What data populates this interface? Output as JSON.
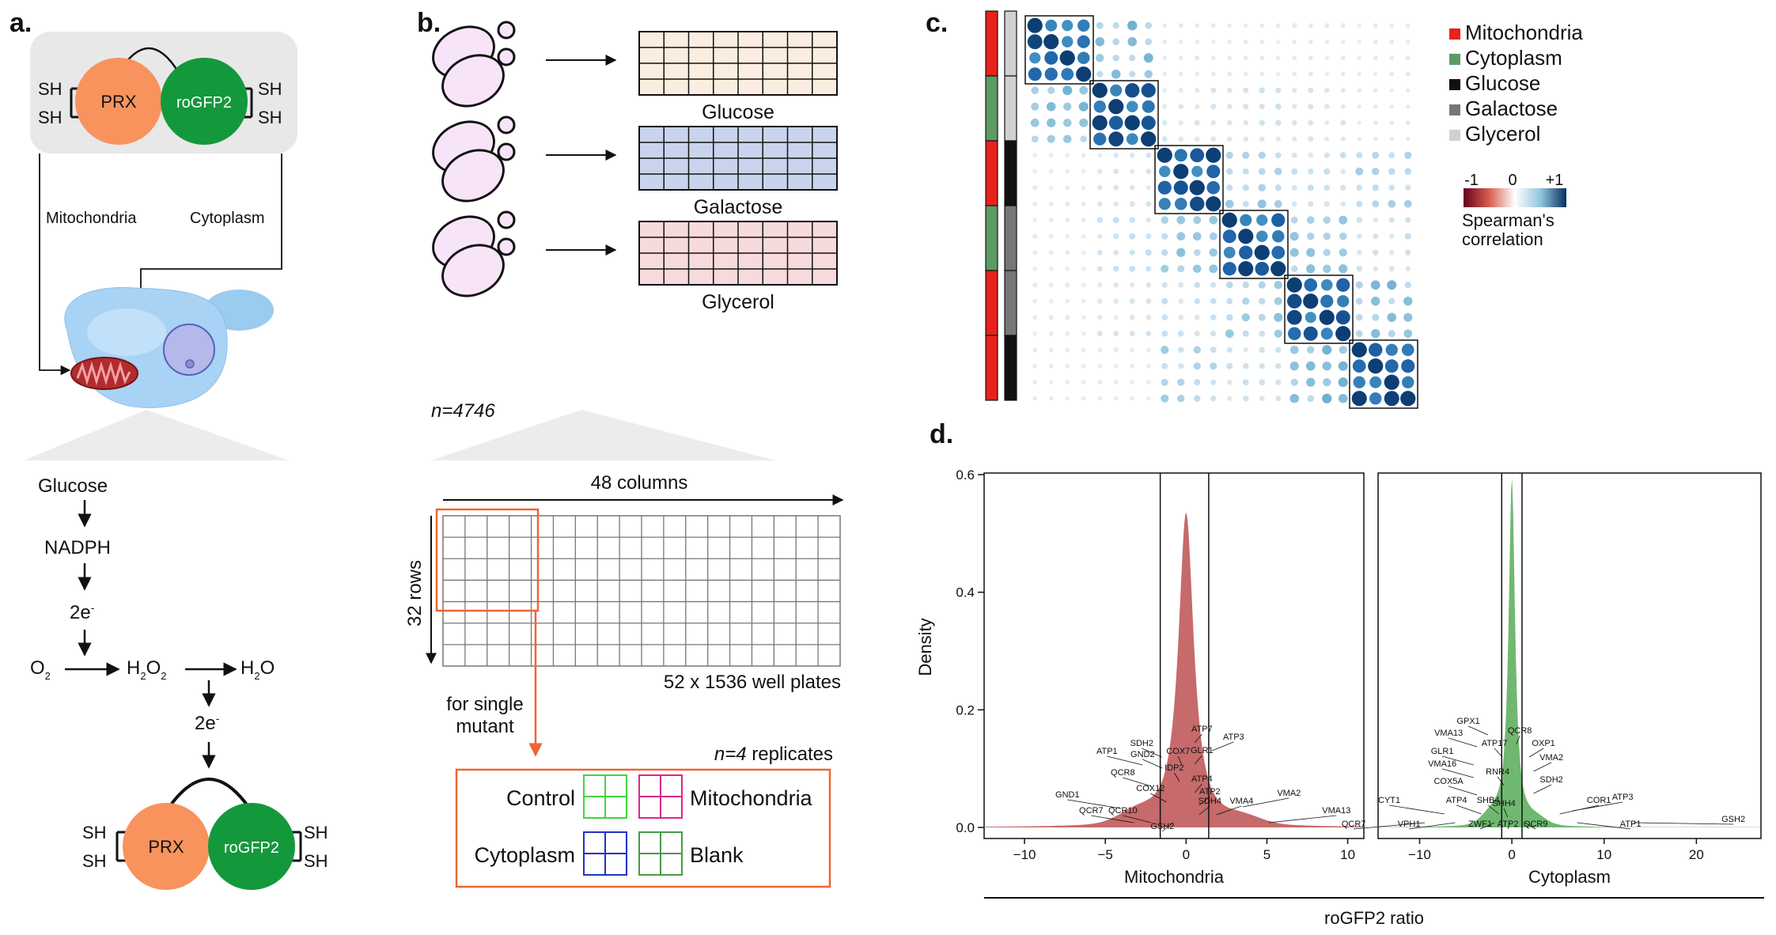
{
  "panel_a": {
    "label": "a.",
    "prx": "PRX",
    "rogfp": "roGFP2",
    "sh": "SH",
    "mito": "Mitochondria",
    "cyto": "Cytoplasm",
    "glucose": "Glucose",
    "nadph": "NADPH",
    "e": "2e",
    "e_sup": "-",
    "o": "O",
    "h": "H",
    "sub2": "2"
  },
  "panel_b": {
    "label": "b.",
    "plates": [
      "Glucose",
      "Galactose",
      "Glycerol"
    ],
    "plate_colors": [
      "#fbeee0",
      "#c8d4ec",
      "#f7dadc"
    ],
    "n": "n=4746",
    "columns": "48 columns",
    "rows": "32 rows",
    "wellplates": "52 x 1536 well plates",
    "single_mutant": [
      "for single",
      "mutant"
    ],
    "replicates": "n=4 replicates",
    "legend": [
      {
        "label": "Control",
        "color": "#3fd63f"
      },
      {
        "label": "Mitochondria",
        "color": "#d8288c"
      },
      {
        "label": "Cytoplasm",
        "color": "#2330c8"
      },
      {
        "label": "Blank",
        "color": "#4a9a4a"
      }
    ],
    "accent": "#ee6633"
  },
  "panel_c": {
    "label": "c.",
    "legend": [
      {
        "label": "Mitochondria",
        "color": "#e8211b"
      },
      {
        "label": "Cytoplasm",
        "color": "#5d9a66"
      },
      {
        "label": "Glucose",
        "color": "#111111"
      },
      {
        "label": "Galactose",
        "color": "#777777"
      },
      {
        "label": "Glycerol",
        "color": "#d0d0d0"
      }
    ],
    "scale_ticks": [
      "-1",
      "0",
      "+1"
    ],
    "scale_title": [
      "Spearman's",
      "correlation"
    ]
  },
  "chart_data": {
    "type": "area",
    "panel_label": "d.",
    "ylabel": "Density",
    "xlabel": "roGFP2 ratio",
    "yticks": [
      "0.0",
      "0.2",
      "0.4",
      "0.6"
    ],
    "ylim": [
      0,
      0.6
    ],
    "panels": [
      {
        "name": "Mitochondria",
        "color": "#c66a6b",
        "xlim": [
          -12.5,
          11
        ],
        "xticks": [
          "−10",
          "−5",
          "0",
          "5",
          "10"
        ],
        "xtick_values": [
          -10,
          -5,
          0,
          5,
          10
        ],
        "thresholds": [
          -1.6,
          1.4
        ],
        "peak": 0.535,
        "genes": [
          "SDH2",
          "ATP1",
          "GND2",
          "COX7",
          "IDP2",
          "QCR8",
          "COX12",
          "GND1",
          "QCR7",
          "QCR10",
          "ATP7",
          "ATP3",
          "GLR1",
          "ATP4",
          "ATP2",
          "SDH4",
          "VMA4",
          "VMA2",
          "VMA13",
          "GSH2"
        ]
      },
      {
        "name": "Cytoplasm",
        "color": "#70b870",
        "xlim": [
          -14.5,
          27
        ],
        "xticks": [
          "−10",
          "0",
          "10",
          "20"
        ],
        "xtick_values": [
          -10,
          0,
          10,
          20
        ],
        "thresholds": [
          -1.1,
          1.1
        ],
        "peak": 0.59,
        "genes": [
          "GPX1",
          "VMA13",
          "QCR8",
          "GLR1",
          "ATP17",
          "OXP1",
          "VMA16",
          "VMA2",
          "RNR4",
          "COX5A",
          "SDH2",
          "ATP4",
          "SHB4",
          "SHH4",
          "CYT1",
          "COR1",
          "ATP3",
          "QCR7",
          "VPH1",
          "ZWF1",
          "ATP2",
          "QCR9",
          "ATP1",
          "GSH2"
        ]
      }
    ]
  }
}
